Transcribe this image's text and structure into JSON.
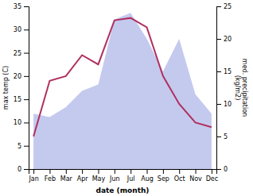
{
  "chart_data": {
    "type": "line",
    "categories": [
      "Jan",
      "Feb",
      "Mar",
      "Apr",
      "May",
      "Jun",
      "Jul",
      "Aug",
      "Sep",
      "Oct",
      "Nov",
      "Dec"
    ],
    "series": [
      {
        "type": "area",
        "axis": "y2",
        "color": "#b0b8e8",
        "values": [
          8.5,
          8,
          9.5,
          12,
          13,
          23,
          24,
          20,
          15,
          20,
          11.5,
          8.5
        ]
      },
      {
        "type": "line",
        "color": "#b03060",
        "values": [
          7,
          19,
          20,
          24.5,
          22.5,
          32,
          32.5,
          30.5,
          20,
          14,
          10,
          9
        ]
      }
    ],
    "xlabel": "date (month)",
    "ylabel": "max temp (C)",
    "y2label": "med. precipitation\n(kg/m2)",
    "ylim": [
      0,
      35
    ],
    "yticks": [
      0,
      5,
      10,
      15,
      20,
      25,
      30,
      35
    ],
    "y2lim": [
      0,
      25
    ],
    "y2ticks": [
      0,
      5,
      10,
      15,
      20,
      25
    ]
  }
}
